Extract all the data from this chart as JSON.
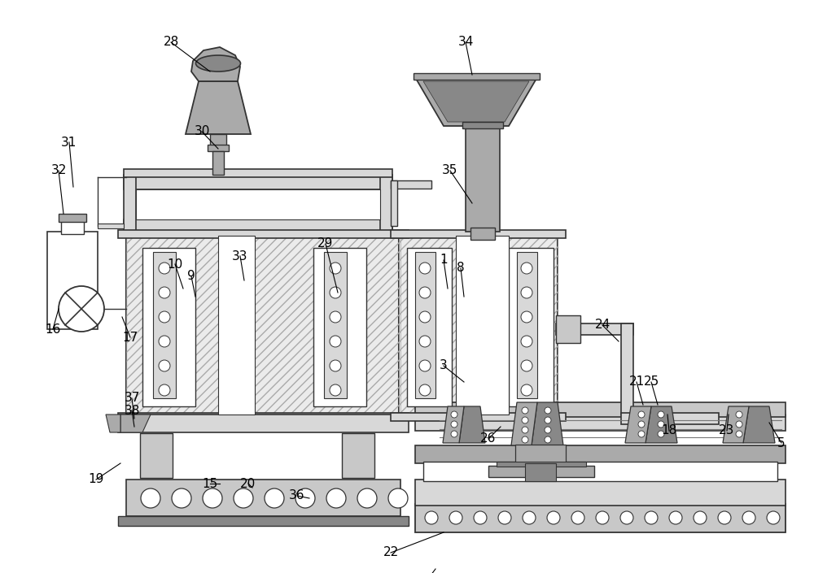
{
  "bg_color": "#ffffff",
  "lc": "#555555",
  "lc_dark": "#333333",
  "gray_light": "#d8d8d8",
  "gray_med": "#aaaaaa",
  "gray_dark": "#888888",
  "gray_fill": "#c8c8c8",
  "white": "#ffffff",
  "figsize": [
    10.0,
    7.05
  ],
  "dpi": 100
}
